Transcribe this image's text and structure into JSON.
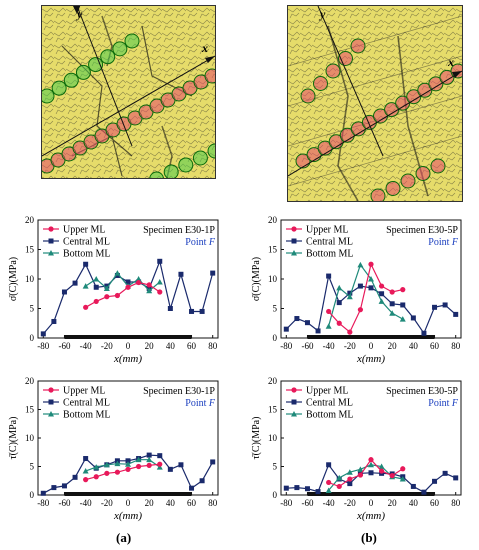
{
  "photos": [
    {
      "name": "photo-a",
      "axis_x": "x",
      "axis_y": "y"
    },
    {
      "name": "photo-b",
      "axis_x": "x",
      "axis_y": "y"
    }
  ],
  "captions": [
    "(a)",
    "(b)"
  ],
  "colors": {
    "upper": "#e8195a",
    "central": "#1a2a6c",
    "bottom": "#1f8a7a",
    "blue_text": "#1b3fbf",
    "photo_bg": "#e6dc6a"
  },
  "chart_data": [
    {
      "type": "line",
      "id": "a-top",
      "specimen": "Specimen E30-1P",
      "point_prefix": "Point",
      "point": "F",
      "xlabel": "x(mm)",
      "ylabel": "σ̄(C)(MPa)",
      "xlim": [
        -85,
        85
      ],
      "ylim": [
        0,
        20
      ],
      "xticks": [
        -80,
        -60,
        -40,
        -20,
        0,
        20,
        40,
        60,
        80
      ],
      "yticks": [
        0,
        5,
        10,
        15,
        20
      ],
      "gauge_range": [
        -60,
        60
      ],
      "series": [
        {
          "name": "Upper ML",
          "key": "upper",
          "marker": "circle",
          "x": [
            -40,
            -30,
            -20,
            -10,
            0,
            10,
            20,
            30
          ],
          "y": [
            5.2,
            6.2,
            7.0,
            7.2,
            8.6,
            9.4,
            9.0,
            7.8
          ]
        },
        {
          "name": "Central ML",
          "key": "central",
          "marker": "square",
          "x": [
            -80,
            -70,
            -60,
            -50,
            -40,
            -30,
            -20,
            -10,
            0,
            10,
            20,
            30,
            40,
            50,
            60,
            70,
            80
          ],
          "y": [
            0.7,
            2.8,
            7.8,
            9.3,
            12.5,
            8.6,
            8.8,
            10.6,
            9.5,
            9.5,
            8.4,
            13.0,
            5.0,
            10.8,
            4.5,
            4.5,
            11.0
          ]
        },
        {
          "name": "Bottom ML",
          "key": "bottom",
          "marker": "triangle",
          "x": [
            -40,
            -30,
            -20,
            -10,
            0,
            10,
            20,
            30
          ],
          "y": [
            8.8,
            10.0,
            8.4,
            11.0,
            8.8,
            10.0,
            8.0,
            9.5
          ]
        }
      ]
    },
    {
      "type": "line",
      "id": "b-top",
      "specimen": "Specimen E30-5P",
      "point_prefix": "Point",
      "point": "F",
      "xlabel": "x(mm)",
      "ylabel": "σ̄(C)(MPa)",
      "xlim": [
        -85,
        85
      ],
      "ylim": [
        0,
        20
      ],
      "xticks": [
        -80,
        -60,
        -40,
        -20,
        0,
        20,
        40,
        60,
        80
      ],
      "yticks": [
        0,
        5,
        10,
        15,
        20
      ],
      "gauge_range": [
        -60,
        60
      ],
      "series": [
        {
          "name": "Upper ML",
          "key": "upper",
          "marker": "circle",
          "x": [
            -40,
            -30,
            -20,
            -10,
            0,
            10,
            20,
            30
          ],
          "y": [
            4.5,
            2.5,
            1.0,
            4.8,
            12.5,
            8.8,
            7.8,
            8.2
          ]
        },
        {
          "name": "Central ML",
          "key": "central",
          "marker": "square",
          "x": [
            -80,
            -70,
            -60,
            -50,
            -40,
            -30,
            -20,
            -10,
            0,
            10,
            20,
            30,
            40,
            50,
            60,
            70,
            80
          ],
          "y": [
            1.5,
            3.3,
            2.6,
            1.2,
            10.5,
            6.0,
            7.6,
            8.8,
            8.5,
            7.5,
            5.8,
            5.6,
            3.4,
            0.8,
            5.2,
            5.6,
            4.0
          ]
        },
        {
          "name": "Bottom ML",
          "key": "bottom",
          "marker": "triangle",
          "x": [
            -40,
            -30,
            -20,
            -10,
            0,
            10,
            20,
            30
          ],
          "y": [
            2.0,
            8.5,
            7.0,
            12.4,
            10.0,
            6.2,
            4.2,
            3.2
          ]
        }
      ]
    },
    {
      "type": "line",
      "id": "a-bottom",
      "specimen": "Specimen E30-1P",
      "point_prefix": "Point",
      "point": "F",
      "xlabel": "x(mm)",
      "ylabel": "τ̄(C)(MPa)",
      "xlim": [
        -85,
        85
      ],
      "ylim": [
        0,
        20
      ],
      "xticks": [
        -80,
        -60,
        -40,
        -20,
        0,
        20,
        40,
        60,
        80
      ],
      "yticks": [
        0,
        5,
        10,
        15,
        20
      ],
      "gauge_range": [
        -60,
        60
      ],
      "series": [
        {
          "name": "Upper ML",
          "key": "upper",
          "marker": "circle",
          "x": [
            -40,
            -30,
            -20,
            -10,
            0,
            10,
            20,
            30
          ],
          "y": [
            2.7,
            3.2,
            3.8,
            4.0,
            4.5,
            5.0,
            5.2,
            5.4
          ]
        },
        {
          "name": "Central ML",
          "key": "central",
          "marker": "square",
          "x": [
            -80,
            -70,
            -60,
            -50,
            -40,
            -30,
            -20,
            -10,
            0,
            10,
            20,
            30,
            40,
            50,
            60,
            70,
            80
          ],
          "y": [
            0.3,
            1.3,
            1.6,
            3.1,
            6.4,
            4.7,
            5.3,
            6.0,
            6.0,
            6.4,
            7.0,
            6.9,
            4.5,
            5.3,
            1.2,
            2.5,
            5.8
          ]
        },
        {
          "name": "Bottom ML",
          "key": "bottom",
          "marker": "triangle",
          "x": [
            -40,
            -30,
            -20,
            -10,
            0,
            10,
            20,
            30
          ],
          "y": [
            4.2,
            4.9,
            5.3,
            5.5,
            5.4,
            6.2,
            6.2,
            4.9
          ]
        }
      ]
    },
    {
      "type": "line",
      "id": "b-bottom",
      "specimen": "Specimen E30-5P",
      "point_prefix": "Point",
      "point": "F",
      "xlabel": "x(mm)",
      "ylabel": "τ̄(C)(MPa)",
      "xlim": [
        -85,
        85
      ],
      "ylim": [
        0,
        20
      ],
      "xticks": [
        -80,
        -60,
        -40,
        -20,
        0,
        20,
        40,
        60,
        80
      ],
      "yticks": [
        0,
        5,
        10,
        15,
        20
      ],
      "gauge_range": [
        -60,
        60
      ],
      "series": [
        {
          "name": "Upper ML",
          "key": "upper",
          "marker": "circle",
          "x": [
            -40,
            -30,
            -20,
            -10,
            0,
            10,
            20,
            30
          ],
          "y": [
            2.2,
            1.5,
            2.8,
            3.5,
            6.2,
            4.2,
            3.4,
            4.6
          ]
        },
        {
          "name": "Central ML",
          "key": "central",
          "marker": "square",
          "x": [
            -80,
            -70,
            -60,
            -50,
            -40,
            -30,
            -20,
            -10,
            0,
            10,
            20,
            30,
            40,
            50,
            60,
            70,
            80
          ],
          "y": [
            1.2,
            1.3,
            1.1,
            0.6,
            5.3,
            2.8,
            2.0,
            3.8,
            3.9,
            3.8,
            3.7,
            3.2,
            1.5,
            0.5,
            2.4,
            3.8,
            3.0
          ]
        },
        {
          "name": "Bottom ML",
          "key": "bottom",
          "marker": "triangle",
          "x": [
            -40,
            -30,
            -20,
            -10,
            0,
            10,
            20,
            30
          ],
          "y": [
            0.8,
            3.0,
            4.0,
            4.5,
            5.3,
            5.0,
            3.2,
            2.8
          ]
        }
      ]
    }
  ]
}
